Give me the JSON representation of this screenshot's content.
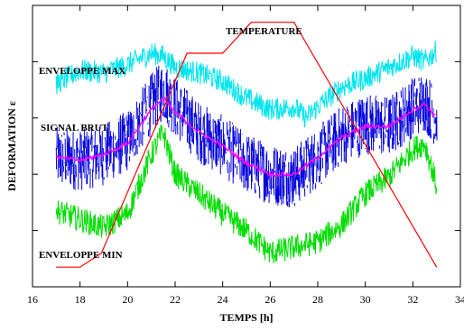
{
  "chart_data": {
    "type": "line",
    "title": "",
    "xlabel": "TEMPS [h]",
    "ylabel": "DEFORMATION ε",
    "xlim": [
      16,
      34
    ],
    "x_ticks": [
      16,
      18,
      20,
      22,
      24,
      26,
      28,
      30,
      32,
      34
    ],
    "x_tick_labels": [
      "16",
      "18",
      "20",
      "22",
      "24",
      "26",
      "28",
      "30",
      "32",
      "34"
    ],
    "y_ticks_labeled": false,
    "ylim": [
      0,
      100
    ],
    "y_tick_values": [
      20,
      40,
      60,
      80
    ],
    "grid": false,
    "annotations": [
      {
        "text": "ENVELOPPE MAX",
        "series": "enveloppe_max"
      },
      {
        "text": "SIGNAL BRUT",
        "series": "signal_brut"
      },
      {
        "text": "TEMPERATURE",
        "series": "temperature"
      },
      {
        "text": "ENVELOPPE MIN",
        "series": "enveloppe_min"
      }
    ],
    "series": [
      {
        "key": "enveloppe_max",
        "color": "#00e5ee",
        "x": [
          17.0,
          18.0,
          19.0,
          20.0,
          21.0,
          21.5,
          22.0,
          23.0,
          24.0,
          25.0,
          26.0,
          27.0,
          27.5,
          28.0,
          29.0,
          30.0,
          31.0,
          32.0,
          32.5,
          33.0
        ],
        "y": [
          72,
          77,
          76,
          79,
          83,
          82,
          78,
          76,
          73,
          67,
          63,
          64,
          60,
          64,
          71,
          74,
          78,
          82,
          80,
          84
        ]
      },
      {
        "key": "signal_brut",
        "color": "#0000dd",
        "x": [
          17.0,
          18.0,
          19.0,
          20.0,
          21.0,
          21.5,
          22.0,
          23.0,
          24.0,
          25.0,
          26.0,
          27.0,
          28.0,
          29.0,
          30.0,
          31.0,
          32.0,
          32.5,
          33.0
        ],
        "y": [
          46,
          45,
          47,
          52,
          65,
          70,
          64,
          55,
          50,
          44,
          40,
          39,
          46,
          54,
          58,
          57,
          64,
          66,
          60
        ]
      },
      {
        "key": "moyenne",
        "color": "#ff00ff",
        "x": [
          17.0,
          18.0,
          19.0,
          20.0,
          21.0,
          21.5,
          22.0,
          23.0,
          24.0,
          25.0,
          26.0,
          27.0,
          28.0,
          29.0,
          30.0,
          31.0,
          32.0,
          32.5,
          33.0
        ],
        "y": [
          46,
          45,
          47,
          51,
          63,
          67,
          62,
          55,
          50,
          44,
          40,
          40,
          46,
          53,
          57,
          57,
          63,
          65,
          60
        ]
      },
      {
        "key": "enveloppe_min",
        "color": "#00dd00",
        "x": [
          17.0,
          18.0,
          19.0,
          20.0,
          21.0,
          21.5,
          22.0,
          23.0,
          24.0,
          25.0,
          26.0,
          27.0,
          28.0,
          29.0,
          30.0,
          31.0,
          32.0,
          32.5,
          33.0
        ],
        "y": [
          27,
          24,
          21,
          26,
          47,
          55,
          40,
          33,
          26,
          20,
          12,
          14,
          16,
          22,
          33,
          39,
          49,
          51,
          36
        ]
      },
      {
        "key": "temperature",
        "color": "#ff0000",
        "x": [
          17.0,
          18.0,
          18.9,
          22.5,
          24.0,
          25.2,
          27.0,
          33.0
        ],
        "y": [
          7,
          7,
          12,
          83,
          83,
          94,
          94,
          7
        ]
      }
    ]
  }
}
